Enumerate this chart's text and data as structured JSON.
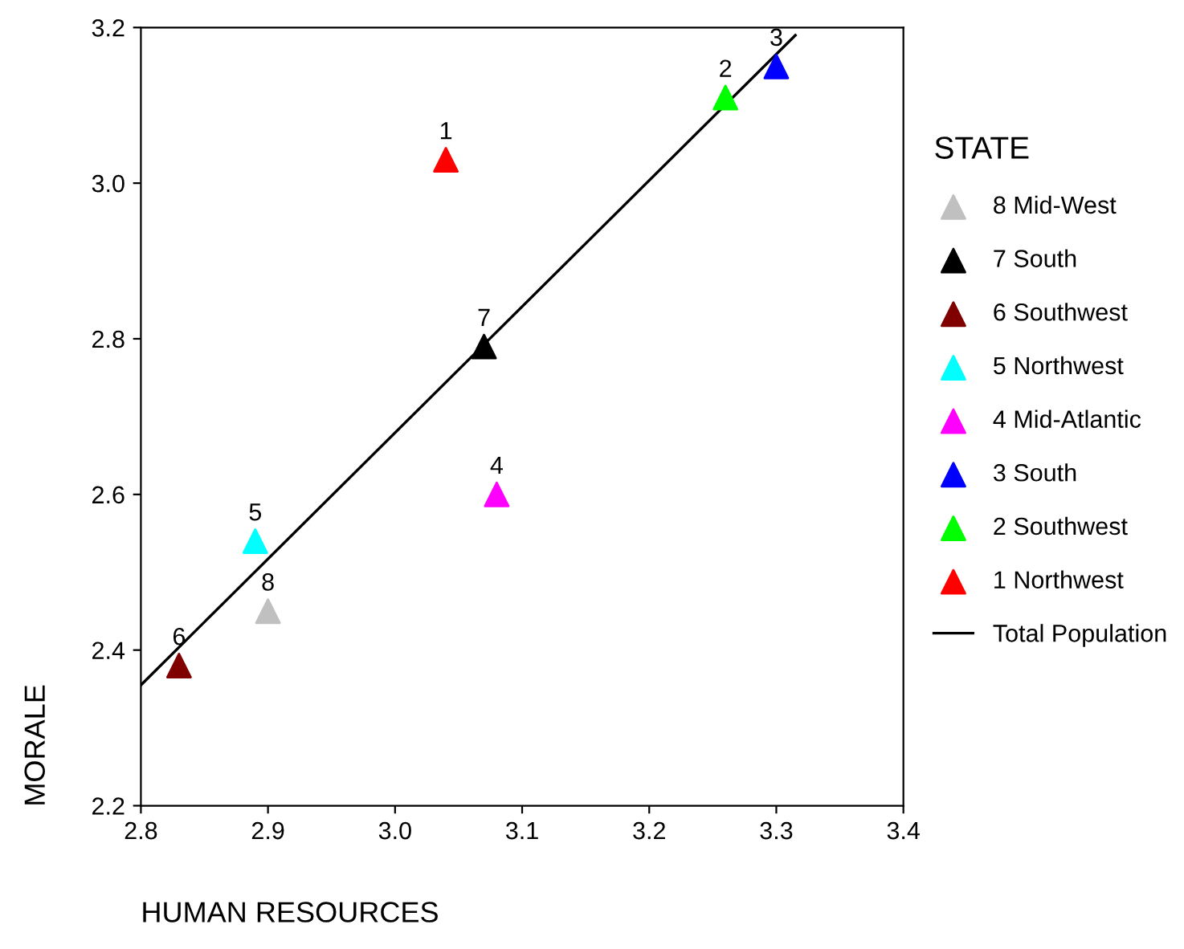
{
  "chart_data": {
    "type": "scatter",
    "xlabel": "HUMAN RESOURCES",
    "ylabel": "MORALE",
    "legend_title": "STATE",
    "xlim": [
      2.8,
      3.4
    ],
    "ylim": [
      2.2,
      3.2
    ],
    "xticks": [
      {
        "value": 2.8,
        "label": "2.8"
      },
      {
        "value": 2.9,
        "label": "2.9"
      },
      {
        "value": 3.0,
        "label": "3.0"
      },
      {
        "value": 3.1,
        "label": "3.1"
      },
      {
        "value": 3.2,
        "label": "3.2"
      },
      {
        "value": 3.3,
        "label": "3.3"
      },
      {
        "value": 3.4,
        "label": "3.4"
      }
    ],
    "yticks": [
      {
        "value": 2.2,
        "label": "2.2"
      },
      {
        "value": 2.4,
        "label": "2.4"
      },
      {
        "value": 2.6,
        "label": "2.6"
      },
      {
        "value": 2.8,
        "label": "2.8"
      },
      {
        "value": 3.0,
        "label": "3.0"
      },
      {
        "value": 3.2,
        "label": "3.2"
      }
    ],
    "grid": false,
    "legend": "right",
    "marker": "triangle",
    "series": [
      {
        "name": "8 Mid-West",
        "color": "#c0c0c0",
        "x": [
          2.9
        ],
        "values": [
          2.45
        ]
      },
      {
        "name": "7 South",
        "color": "#000000",
        "x": [
          3.07
        ],
        "values": [
          2.79
        ]
      },
      {
        "name": "6 Southwest",
        "color": "#800000",
        "x": [
          2.83
        ],
        "values": [
          2.38
        ]
      },
      {
        "name": "5 Northwest",
        "color": "#00ffff",
        "x": [
          2.89
        ],
        "values": [
          2.54
        ]
      },
      {
        "name": "4 Mid-Atlantic",
        "color": "#ff00ff",
        "x": [
          3.08
        ],
        "values": [
          2.6
        ]
      },
      {
        "name": "3 South",
        "color": "#0000ff",
        "x": [
          3.3
        ],
        "values": [
          3.15
        ]
      },
      {
        "name": "2 Southwest",
        "color": "#00ff00",
        "x": [
          3.26
        ],
        "values": [
          3.11
        ]
      },
      {
        "name": "1 Northwest",
        "color": "#ff0000",
        "x": [
          3.04
        ],
        "values": [
          3.03
        ]
      },
      {
        "name": "Total Population",
        "type": "line",
        "marker": "none",
        "color": "#000000",
        "x": [
          2.8,
          3.315
        ],
        "values": [
          2.355,
          3.19
        ]
      }
    ],
    "annotations": [
      {
        "text": "8",
        "x": 2.9,
        "y": 2.45
      },
      {
        "text": "7",
        "x": 3.07,
        "y": 2.79
      },
      {
        "text": "6",
        "x": 2.83,
        "y": 2.38
      },
      {
        "text": "5",
        "x": 2.89,
        "y": 2.54
      },
      {
        "text": "4",
        "x": 3.08,
        "y": 2.6
      },
      {
        "text": "3",
        "x": 3.3,
        "y": 3.15
      },
      {
        "text": "2",
        "x": 3.26,
        "y": 3.11
      },
      {
        "text": "1",
        "x": 3.04,
        "y": 3.03
      }
    ]
  }
}
